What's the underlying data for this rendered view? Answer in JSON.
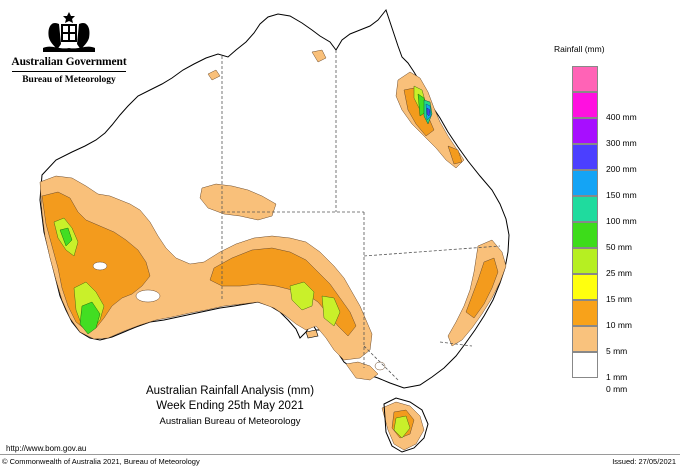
{
  "header": {
    "government_name": "Australian Government",
    "bureau_name": "Bureau of Meteorology"
  },
  "map": {
    "title_line1": "Australian Rainfall Analysis (mm)",
    "title_line2": "Week Ending 25th May 2021",
    "title_line3": "Australian Bureau of Meteorology",
    "colors": {
      "land": "#ffffff",
      "coast": "#000000",
      "borders": "#555555",
      "rain_1mm": "#f9c07a",
      "rain_5mm": "#f39b1d",
      "rain_15mm": "#c9f02a",
      "rain_25mm": "#42de22",
      "rain_50mm": "#21d889",
      "rain_100mm": "#12a8ee",
      "rain_150mm": "#3d4aee"
    }
  },
  "legend": {
    "title": "Rainfall (mm)",
    "items": [
      {
        "label": "",
        "color": "#ff63b6"
      },
      {
        "label": "400 mm",
        "color": "#ff10e0"
      },
      {
        "label": "300 mm",
        "color": "#a70eff"
      },
      {
        "label": "200 mm",
        "color": "#4b3fff"
      },
      {
        "label": "150 mm",
        "color": "#14a4f5"
      },
      {
        "label": "100 mm",
        "color": "#1fdb9e"
      },
      {
        "label": "50 mm",
        "color": "#3ddc1a"
      },
      {
        "label": "25 mm",
        "color": "#b6ef22"
      },
      {
        "label": "15 mm",
        "color": "#ffff0e"
      },
      {
        "label": "10 mm",
        "color": "#f8a21a"
      },
      {
        "label": "5 mm",
        "color": "#f9c27d"
      },
      {
        "label": "1 mm",
        "color": "#ffffff"
      },
      {
        "label": "0 mm",
        "color": ""
      }
    ]
  },
  "footer": {
    "url": "http://www.bom.gov.au",
    "copyright": "© Commonwealth of Australia 2021, Bureau of Meteorology",
    "issued": "Issued: 27/05/2021"
  }
}
